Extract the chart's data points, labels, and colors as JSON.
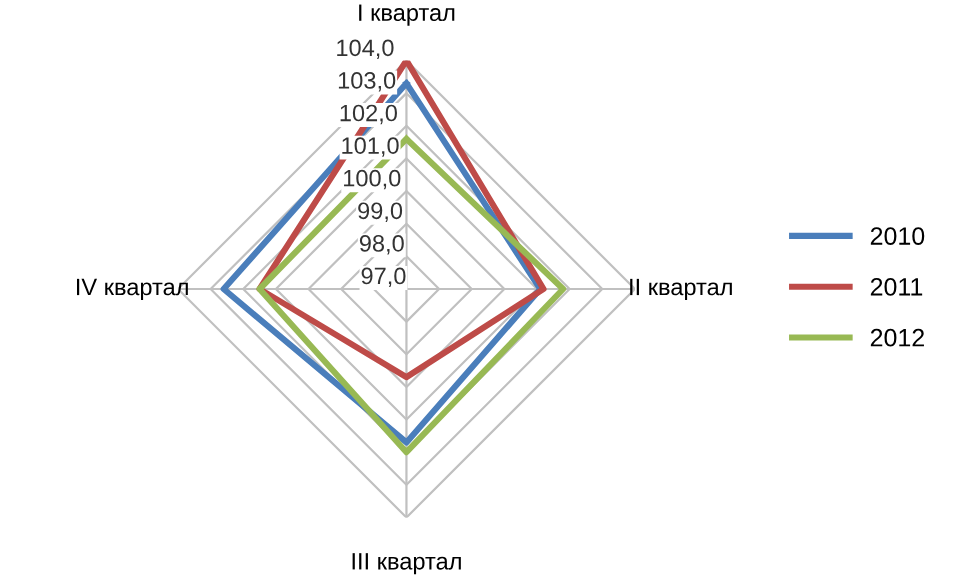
{
  "chart_data": {
    "type": "radar",
    "categories": [
      "I квартал",
      "II квартал",
      "III квартал",
      "IV квартал"
    ],
    "series": [
      {
        "name": "2010",
        "color": "#4a7ebb",
        "values": [
          103.3,
          101.1,
          101.7,
          102.6
        ]
      },
      {
        "name": "2011",
        "color": "#be4b48",
        "values": [
          104.0,
          101.2,
          99.7,
          101.5
        ]
      },
      {
        "name": "2012",
        "color": "#98b954",
        "values": [
          101.6,
          101.8,
          102.0,
          101.5
        ]
      }
    ],
    "ylim": [
      97,
      104
    ],
    "yticks": [
      {
        "value": 97,
        "label": "97,0"
      },
      {
        "value": 98,
        "label": "98,0"
      },
      {
        "value": 99,
        "label": "99,0"
      },
      {
        "value": 100,
        "label": "100,0"
      },
      {
        "value": 101,
        "label": "101,0"
      },
      {
        "value": 102,
        "label": "102,0"
      },
      {
        "value": 103,
        "label": "103,0"
      },
      {
        "value": 104,
        "label": "104,0"
      }
    ],
    "grid": true,
    "legend": "right"
  }
}
